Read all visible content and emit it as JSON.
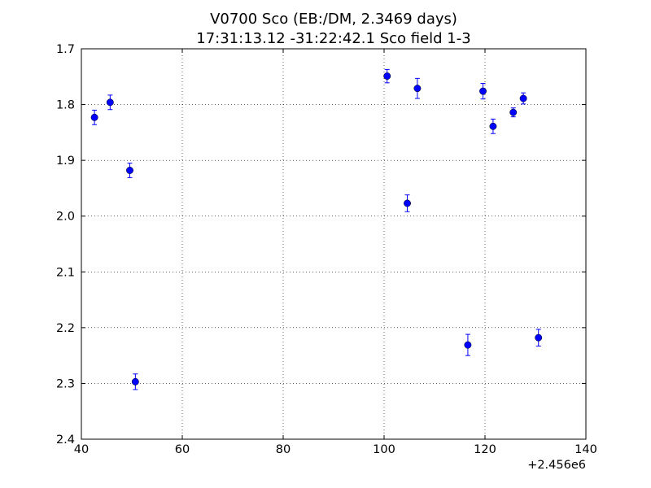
{
  "chart_data": {
    "type": "scatter",
    "title": "V0700 Sco (EB:/DM, 2.3469 days)",
    "subtitle": "17:31:13.12 -31:22:42.1 Sco field 1-3",
    "xlabel": "",
    "ylabel": "",
    "x_offset_label": "+2.456e6",
    "xlim": [
      40,
      140
    ],
    "ylim": [
      1.7,
      2.4
    ],
    "y_inverted": true,
    "grid": true,
    "legend": "none",
    "x_ticks": [
      40,
      60,
      80,
      100,
      120,
      140
    ],
    "x_tick_labels": [
      "40",
      "60",
      "80",
      "100",
      "120",
      "140"
    ],
    "y_ticks": [
      1.7,
      1.8,
      1.9,
      2.0,
      2.1,
      2.2,
      2.3,
      2.4
    ],
    "y_tick_labels": [
      "1.7",
      "1.8",
      "1.9",
      "2.0",
      "2.1",
      "2.2",
      "2.3",
      "2.4"
    ],
    "marker_color": "#0000ff",
    "points": [
      {
        "x": 42.6,
        "y": 1.823,
        "err": 0.013
      },
      {
        "x": 45.7,
        "y": 1.796,
        "err": 0.013
      },
      {
        "x": 49.6,
        "y": 1.918,
        "err": 0.013
      },
      {
        "x": 50.7,
        "y": 2.297,
        "err": 0.014
      },
      {
        "x": 100.6,
        "y": 1.749,
        "err": 0.012
      },
      {
        "x": 104.6,
        "y": 1.977,
        "err": 0.015
      },
      {
        "x": 106.6,
        "y": 1.771,
        "err": 0.018
      },
      {
        "x": 116.6,
        "y": 2.231,
        "err": 0.019
      },
      {
        "x": 119.6,
        "y": 1.776,
        "err": 0.014
      },
      {
        "x": 121.6,
        "y": 1.839,
        "err": 0.013
      },
      {
        "x": 125.6,
        "y": 1.814,
        "err": 0.008
      },
      {
        "x": 127.6,
        "y": 1.789,
        "err": 0.01
      },
      {
        "x": 130.6,
        "y": 2.218,
        "err": 0.015
      }
    ]
  }
}
